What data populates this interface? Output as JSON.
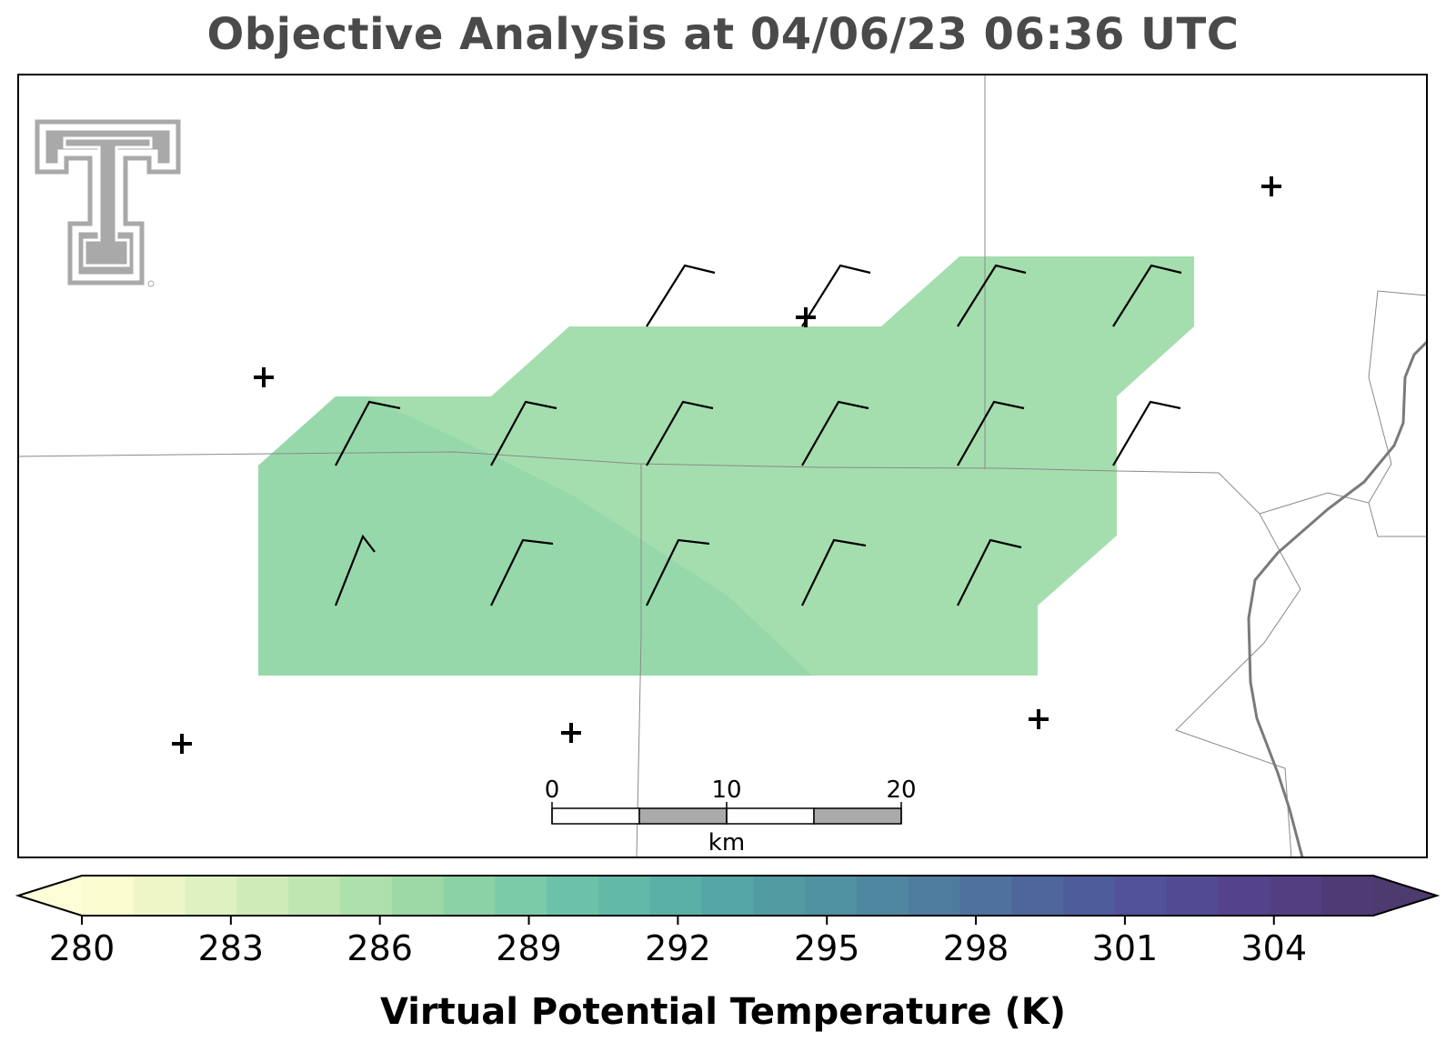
{
  "title": "Objective Analysis at 04/06/23 06:36 UTC",
  "colorbar": {
    "label": "Virtual Potential Temperature (K)",
    "ticks": [
      "280",
      "283",
      "286",
      "289",
      "292",
      "295",
      "298",
      "301",
      "304"
    ],
    "min": 280,
    "max": 306,
    "step": 1,
    "extend": "both",
    "colors": [
      "#fbfcd0",
      "#eef6c7",
      "#dff1c0",
      "#cfebb7",
      "#bfe5b0",
      "#aee0ab",
      "#9dd9a7",
      "#8bd2a6",
      "#7acba7",
      "#6cc2a8",
      "#62b9a8",
      "#5aafa7",
      "#54a5a5",
      "#519ba3",
      "#5091a2",
      "#4f87a1",
      "#4e7c9f",
      "#4e719e",
      "#4e669c",
      "#4f5c9b",
      "#515299",
      "#534a94",
      "#54438c",
      "#533e82",
      "#503a76"
    ],
    "under_color": "#fdfed8",
    "over_color": "#4d3a6e"
  },
  "scale_bar": {
    "labels": [
      "0",
      "10",
      "20"
    ],
    "unit": "km"
  },
  "analysis": {
    "field": "Virtual Potential Temperature",
    "region_color": "#a5deae",
    "warm_region_color": "#97d8ab",
    "region_value_k": 286.5,
    "warm_region_value_k": 287.3
  },
  "stations_marker": "plus-icon",
  "wind_barbs": "10 kt barbs, westerly flow",
  "logo": "texas-tech-double-t-logo"
}
